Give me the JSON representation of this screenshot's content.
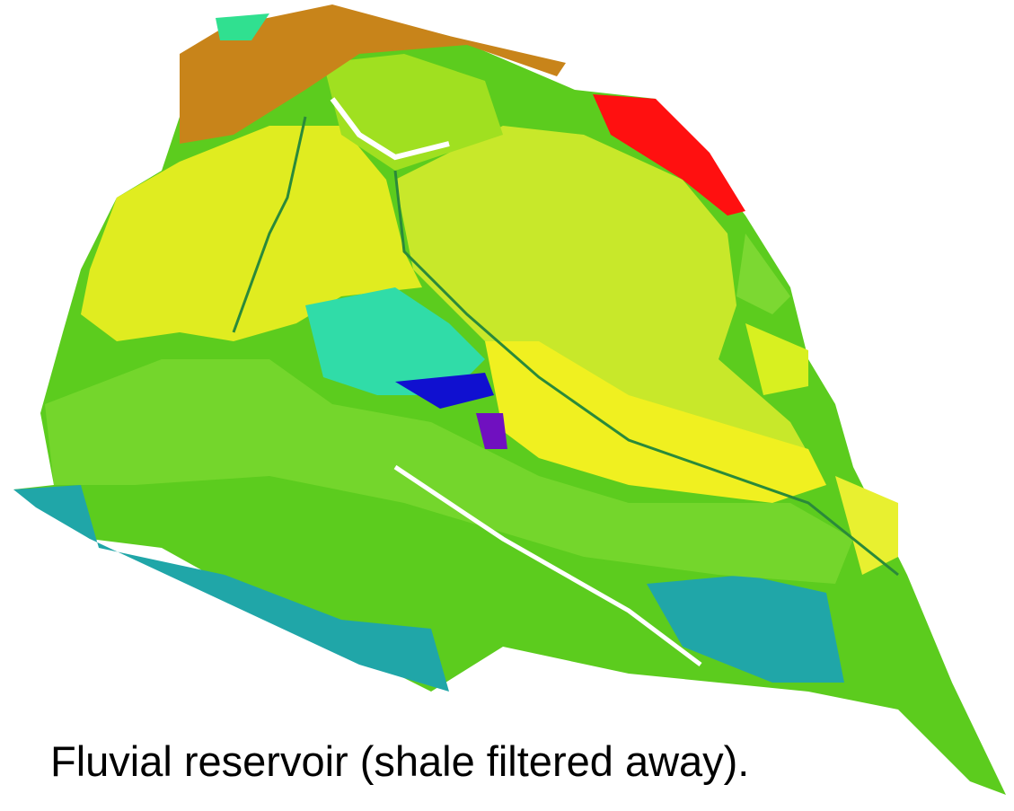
{
  "caption": "Fluvial reservoir (shale filtered away)."
}
